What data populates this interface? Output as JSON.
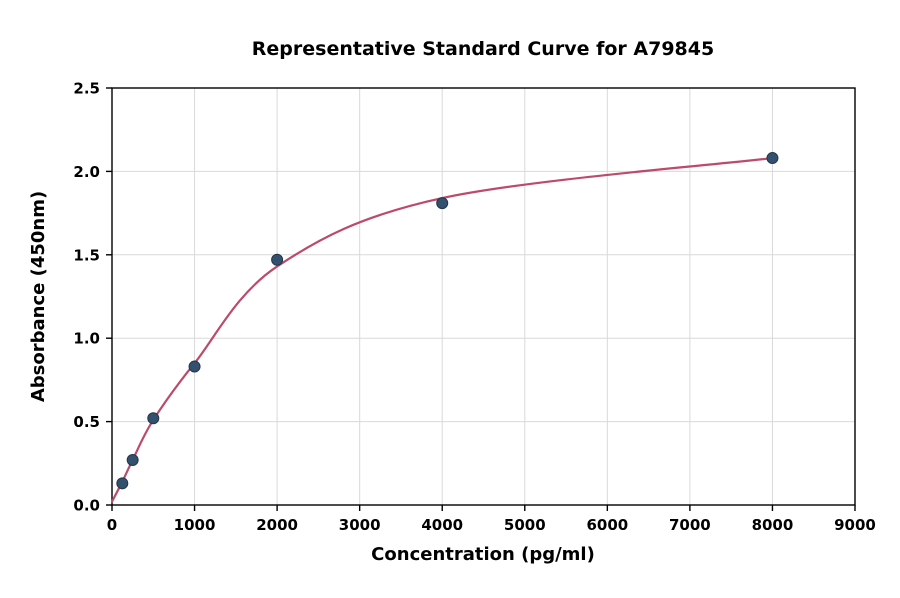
{
  "chart_data": {
    "type": "scatter",
    "title": "Representative Standard Curve for A79845",
    "xlabel": "Concentration (pg/ml)",
    "ylabel": "Absorbance (450nm)",
    "xlim": [
      0,
      9000
    ],
    "ylim": [
      0,
      2.5
    ],
    "x_ticks": [
      0,
      1000,
      2000,
      3000,
      4000,
      5000,
      6000,
      7000,
      8000,
      9000
    ],
    "x_tick_labels": [
      "0",
      "1000",
      "2000",
      "3000",
      "4000",
      "5000",
      "6000",
      "7000",
      "8000",
      "9000"
    ],
    "y_ticks": [
      0,
      0.5,
      1,
      1.5,
      2,
      2.5
    ],
    "y_tick_labels": [
      "0.0",
      "0.5",
      "1.0",
      "1.5",
      "2.0",
      "2.5"
    ],
    "grid": true,
    "points": [
      [
        125,
        0.13
      ],
      [
        250,
        0.27
      ],
      [
        500,
        0.52
      ],
      [
        1000,
        0.83
      ],
      [
        2000,
        1.47
      ],
      [
        4000,
        1.81
      ],
      [
        8000,
        2.08
      ]
    ],
    "fit_curve": [
      [
        0,
        0.02
      ],
      [
        125,
        0.14
      ],
      [
        250,
        0.27
      ],
      [
        500,
        0.51
      ],
      [
        1000,
        0.85
      ],
      [
        2000,
        1.43
      ],
      [
        4000,
        1.84
      ],
      [
        8000,
        2.08
      ]
    ],
    "colors": {
      "curve": "#bc4a6b",
      "marker_fill": "#33506e",
      "marker_edge": "#22364a",
      "grid": "#d9d9d9",
      "axis": "#000000"
    }
  }
}
